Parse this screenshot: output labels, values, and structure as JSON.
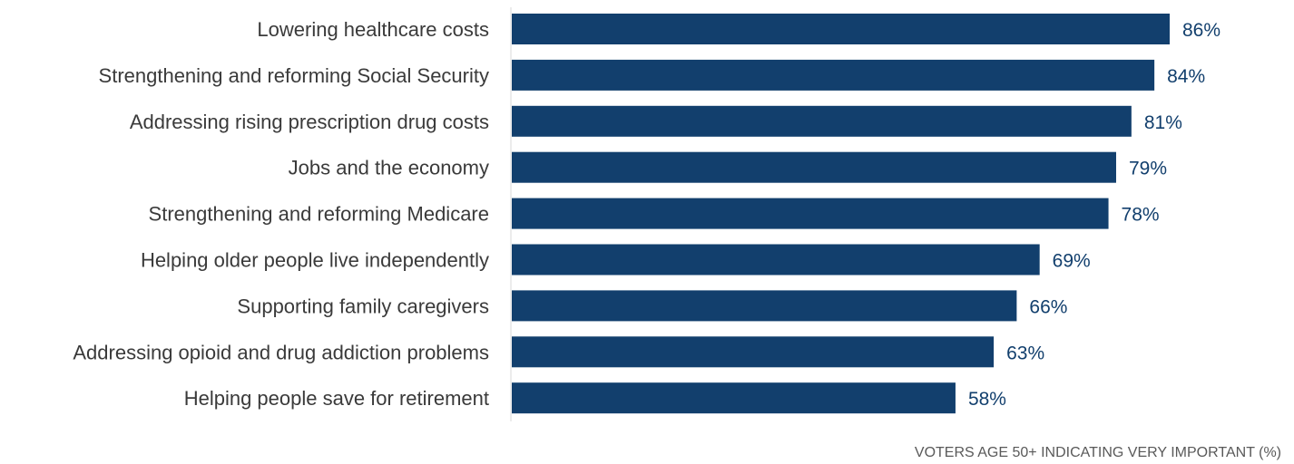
{
  "chart_data": {
    "type": "bar",
    "orientation": "horizontal",
    "categories": [
      "Lowering healthcare costs",
      "Strengthening and reforming Social Security",
      "Addressing rising prescription drug costs",
      "Jobs and the economy",
      "Strengthening and reforming Medicare",
      "Helping older people live independently",
      "Supporting family caregivers",
      "Addressing opioid and drug addiction problems",
      "Helping people save for retirement"
    ],
    "values": [
      86,
      84,
      81,
      79,
      78,
      69,
      66,
      63,
      58
    ],
    "value_labels": [
      "86%",
      "84%",
      "81%",
      "79%",
      "78%",
      "69%",
      "66%",
      "63%",
      "58%"
    ],
    "xlabel": "VOTERS AGE 50+ INDICATING VERY IMPORTANT (%)",
    "xlim": [
      0,
      100
    ],
    "grid": false,
    "legend": "none",
    "colors": {
      "bar": "#123f6d",
      "value_text": "#123f6d",
      "axis": "#d9d9d9"
    }
  }
}
